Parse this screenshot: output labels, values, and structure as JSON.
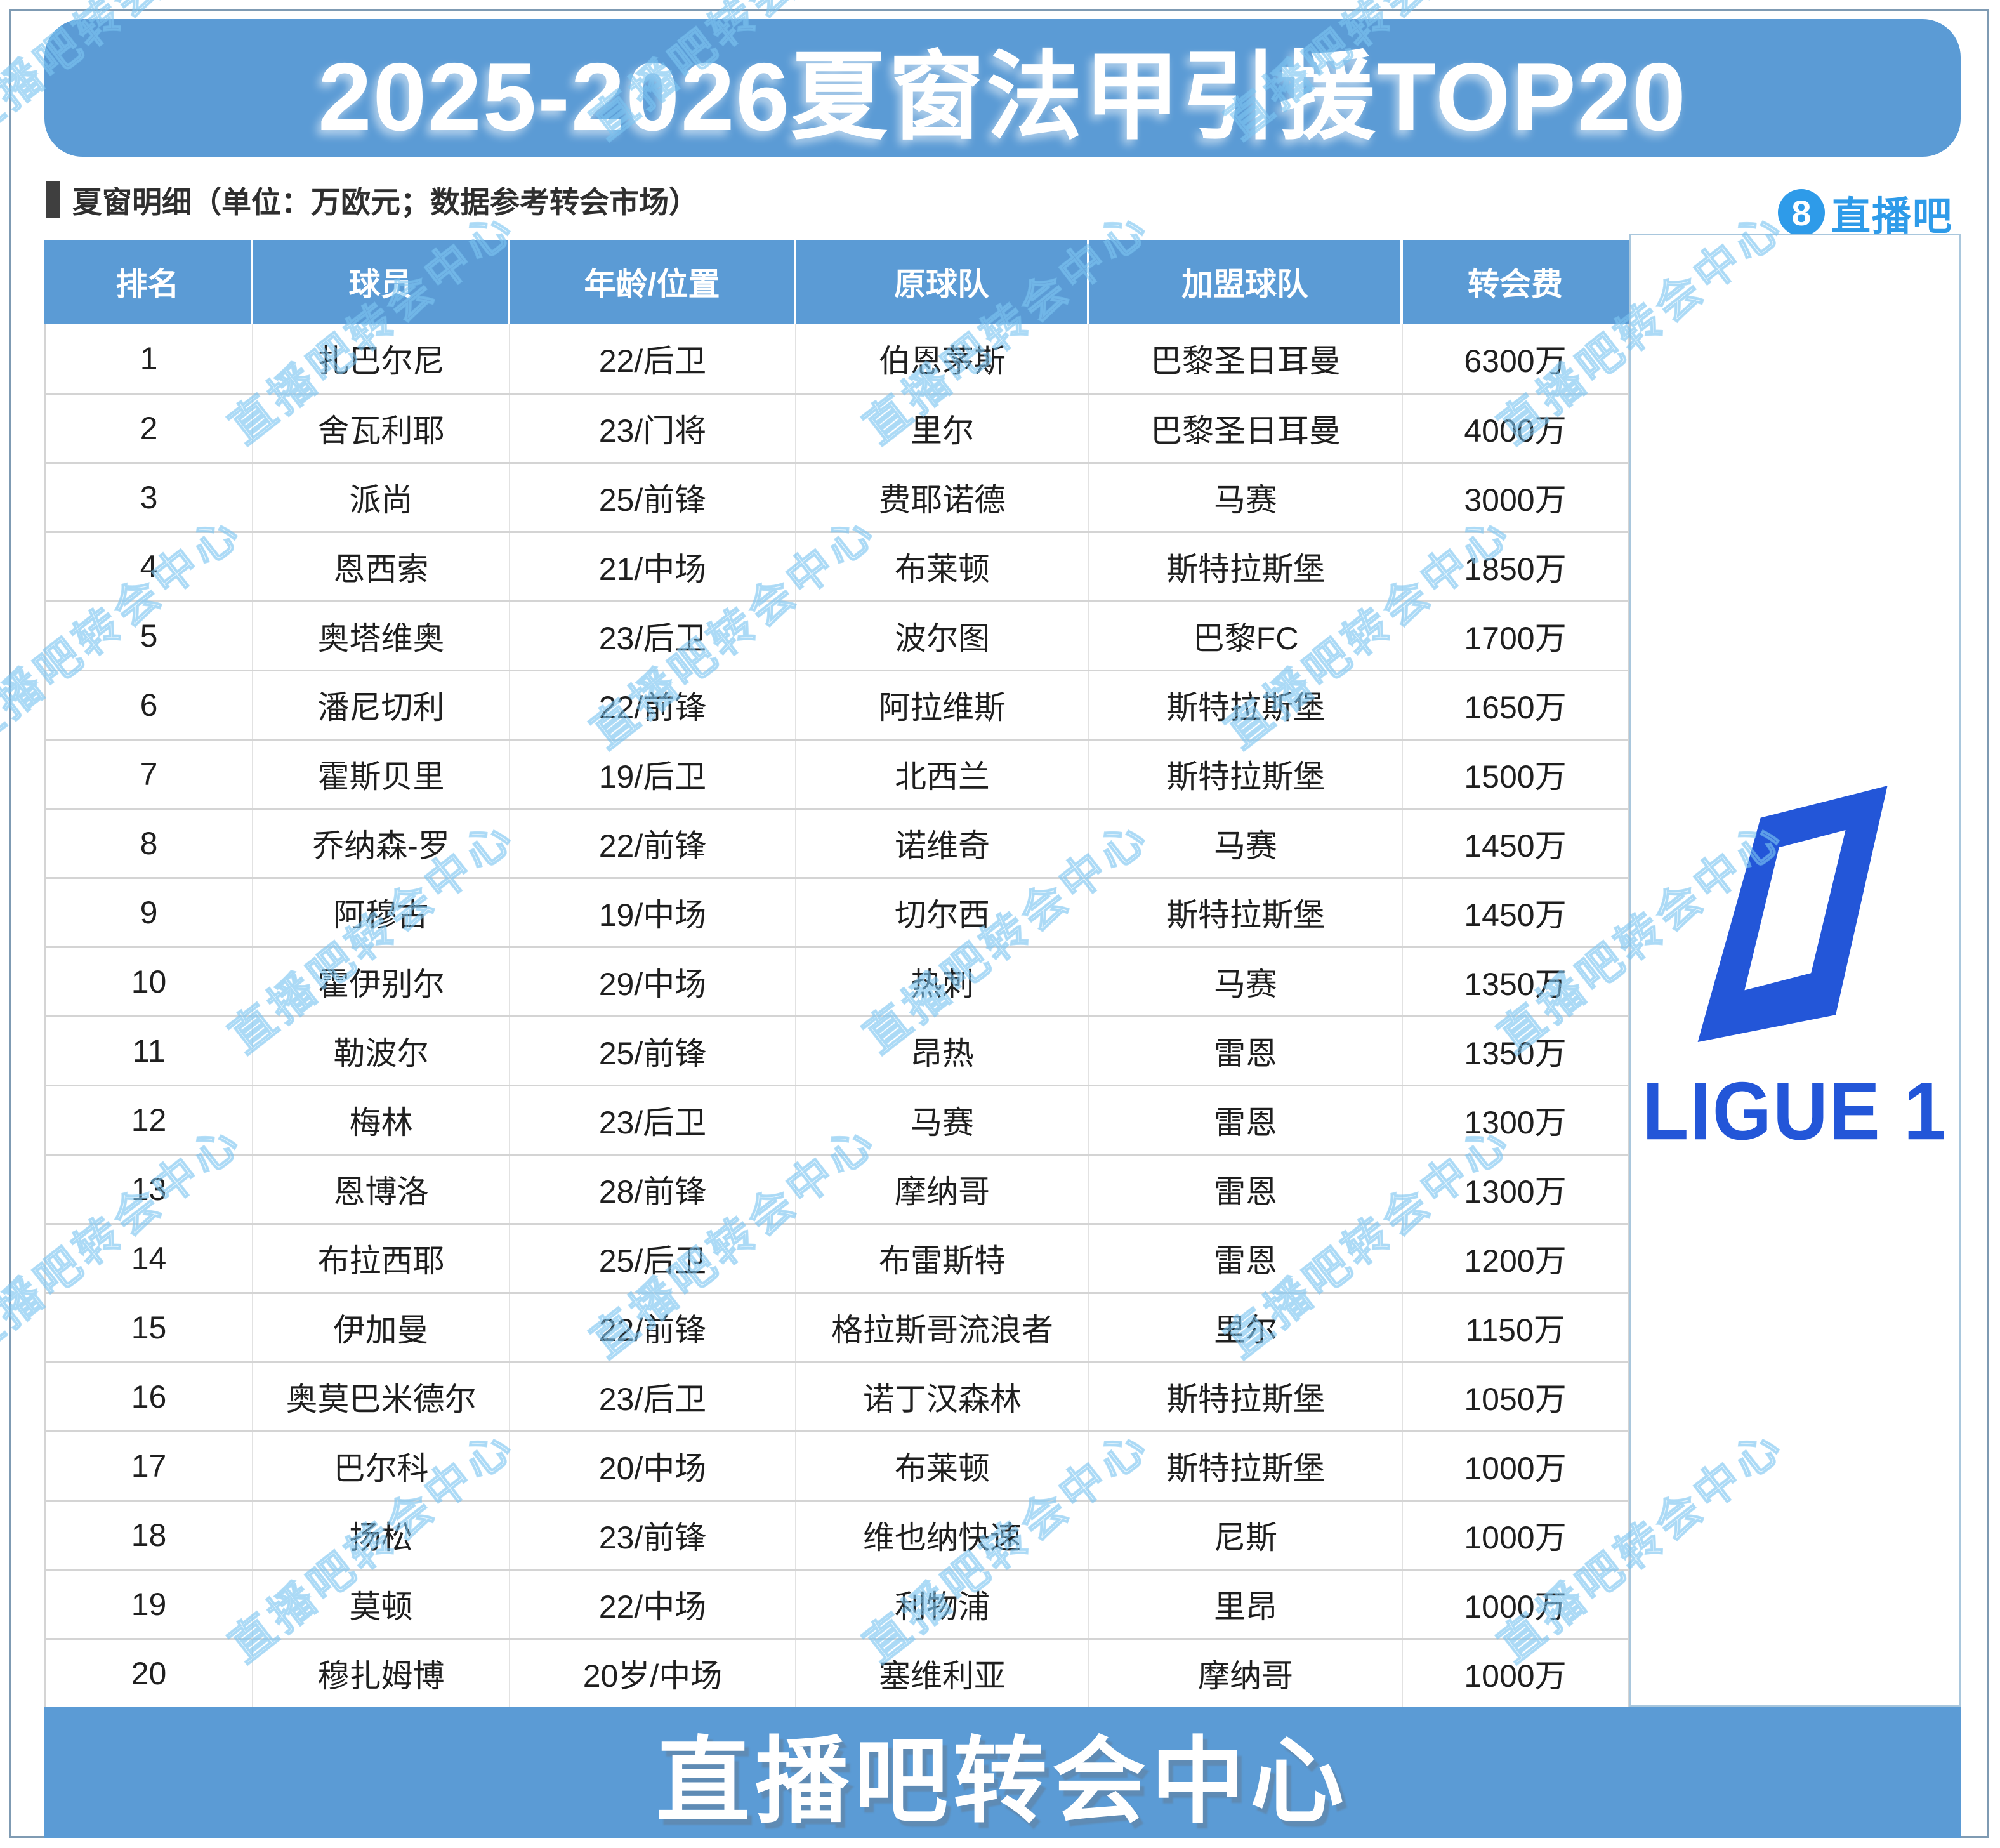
{
  "page": {
    "title": "2025-2026夏窗法甲引援TOP20",
    "subtitle": "夏窗明细（单位：万欧元；数据参考转会市场）",
    "footer_banner": "直播吧转会中心",
    "watermark": "直播吧转会中心"
  },
  "branding": {
    "zhibo8_badge": "8",
    "zhibo8_name": "直播吧",
    "ligue1_wordmark": "LIGUE 1"
  },
  "colors": {
    "accent_blue": "#5B9BD5",
    "ligue1_blue": "#2356D8",
    "zhibo8_blue": "#2E9BE9",
    "row_line_gray": "#D4D4D4",
    "text_dark": "#1F1F1F",
    "watermark_blue": "#7CC8F2",
    "frame_line": "#7F9BB3"
  },
  "table": {
    "columns": [
      "排名",
      "球员",
      "年龄/位置",
      "原球队",
      "加盟球队",
      "转会费"
    ],
    "rows": [
      [
        "1",
        "扎巴尔尼",
        "22/后卫",
        "伯恩茅斯",
        "巴黎圣日耳曼",
        "6300万"
      ],
      [
        "2",
        "舍瓦利耶",
        "23/门将",
        "里尔",
        "巴黎圣日耳曼",
        "4000万"
      ],
      [
        "3",
        "派尚",
        "25/前锋",
        "费耶诺德",
        "马赛",
        "3000万"
      ],
      [
        "4",
        "恩西索",
        "21/中场",
        "布莱顿",
        "斯特拉斯堡",
        "1850万"
      ],
      [
        "5",
        "奥塔维奥",
        "23/后卫",
        "波尔图",
        "巴黎FC",
        "1700万"
      ],
      [
        "6",
        "潘尼切利",
        "22/前锋",
        "阿拉维斯",
        "斯特拉斯堡",
        "1650万"
      ],
      [
        "7",
        "霍斯贝里",
        "19/后卫",
        "北西兰",
        "斯特拉斯堡",
        "1500万"
      ],
      [
        "8",
        "乔纳森-罗",
        "22/前锋",
        "诺维奇",
        "马赛",
        "1450万"
      ],
      [
        "9",
        "阿穆古",
        "19/中场",
        "切尔西",
        "斯特拉斯堡",
        "1450万"
      ],
      [
        "10",
        "霍伊别尔",
        "29/中场",
        "热刺",
        "马赛",
        "1350万"
      ],
      [
        "11",
        "勒波尔",
        "25/前锋",
        "昂热",
        "雷恩",
        "1350万"
      ],
      [
        "12",
        "梅林",
        "23/后卫",
        "马赛",
        "雷恩",
        "1300万"
      ],
      [
        "13",
        "恩博洛",
        "28/前锋",
        "摩纳哥",
        "雷恩",
        "1300万"
      ],
      [
        "14",
        "布拉西耶",
        "25/后卫",
        "布雷斯特",
        "雷恩",
        "1200万"
      ],
      [
        "15",
        "伊加曼",
        "22/前锋",
        "格拉斯哥流浪者",
        "里尔",
        "1150万"
      ],
      [
        "16",
        "奥莫巴米德尔",
        "23/后卫",
        "诺丁汉森林",
        "斯特拉斯堡",
        "1050万"
      ],
      [
        "17",
        "巴尔科",
        "20/中场",
        "布莱顿",
        "斯特拉斯堡",
        "1000万"
      ],
      [
        "18",
        "扬松",
        "23/前锋",
        "维也纳快速",
        "尼斯",
        "1000万"
      ],
      [
        "19",
        "莫顿",
        "22/中场",
        "利物浦",
        "里昂",
        "1000万"
      ],
      [
        "20",
        "穆扎姆博",
        "20岁/中场",
        "塞维利亚",
        "摩纳哥",
        "1000万"
      ]
    ]
  },
  "chart_data": {
    "type": "table",
    "title": "2025-2026夏窗法甲引援TOP20",
    "subtitle": "夏窗明细（单位：万欧元；数据参考转会市场）",
    "columns": [
      "排名",
      "球员",
      "年龄/位置",
      "原球队",
      "加盟球队",
      "转会费"
    ],
    "rows": [
      [
        "1",
        "扎巴尔尼",
        "22/后卫",
        "伯恩茅斯",
        "巴黎圣日耳曼",
        "6300万"
      ],
      [
        "2",
        "舍瓦利耶",
        "23/门将",
        "里尔",
        "巴黎圣日耳曼",
        "4000万"
      ],
      [
        "3",
        "派尚",
        "25/前锋",
        "费耶诺德",
        "马赛",
        "3000万"
      ],
      [
        "4",
        "恩西索",
        "21/中场",
        "布莱顿",
        "斯特拉斯堡",
        "1850万"
      ],
      [
        "5",
        "奥塔维奥",
        "23/后卫",
        "波尔图",
        "巴黎FC",
        "1700万"
      ],
      [
        "6",
        "潘尼切利",
        "22/前锋",
        "阿拉维斯",
        "斯特拉斯堡",
        "1650万"
      ],
      [
        "7",
        "霍斯贝里",
        "19/后卫",
        "北西兰",
        "斯特拉斯堡",
        "1500万"
      ],
      [
        "8",
        "乔纳森-罗",
        "22/前锋",
        "诺维奇",
        "马赛",
        "1450万"
      ],
      [
        "9",
        "阿穆古",
        "19/中场",
        "切尔西",
        "斯特拉斯堡",
        "1450万"
      ],
      [
        "10",
        "霍伊别尔",
        "29/中场",
        "热刺",
        "马赛",
        "1350万"
      ],
      [
        "11",
        "勒波尔",
        "25/前锋",
        "昂热",
        "雷恩",
        "1350万"
      ],
      [
        "12",
        "梅林",
        "23/后卫",
        "马赛",
        "雷恩",
        "1300万"
      ],
      [
        "13",
        "恩博洛",
        "28/前锋",
        "摩纳哥",
        "雷恩",
        "1300万"
      ],
      [
        "14",
        "布拉西耶",
        "25/后卫",
        "布雷斯特",
        "雷恩",
        "1200万"
      ],
      [
        "15",
        "伊加曼",
        "22/前锋",
        "格拉斯哥流浪者",
        "里尔",
        "1150万"
      ],
      [
        "16",
        "奥莫巴米德尔",
        "23/后卫",
        "诺丁汉森林",
        "斯特拉斯堡",
        "1050万"
      ],
      [
        "17",
        "巴尔科",
        "20/中场",
        "布莱顿",
        "斯特拉斯堡",
        "1000万"
      ],
      [
        "18",
        "扬松",
        "23/前锋",
        "维也纳快速",
        "尼斯",
        "1000万"
      ],
      [
        "19",
        "莫顿",
        "22/中场",
        "利物浦",
        "里昂",
        "1000万"
      ],
      [
        "20",
        "穆扎姆博",
        "20岁/中场",
        "塞维利亚",
        "摩纳哥",
        "1000万"
      ]
    ],
    "fee_values_wan_eur": [
      6300,
      4000,
      3000,
      1850,
      1700,
      1650,
      1500,
      1450,
      1450,
      1350,
      1350,
      1300,
      1300,
      1200,
      1150,
      1050,
      1000,
      1000,
      1000,
      1000
    ]
  }
}
